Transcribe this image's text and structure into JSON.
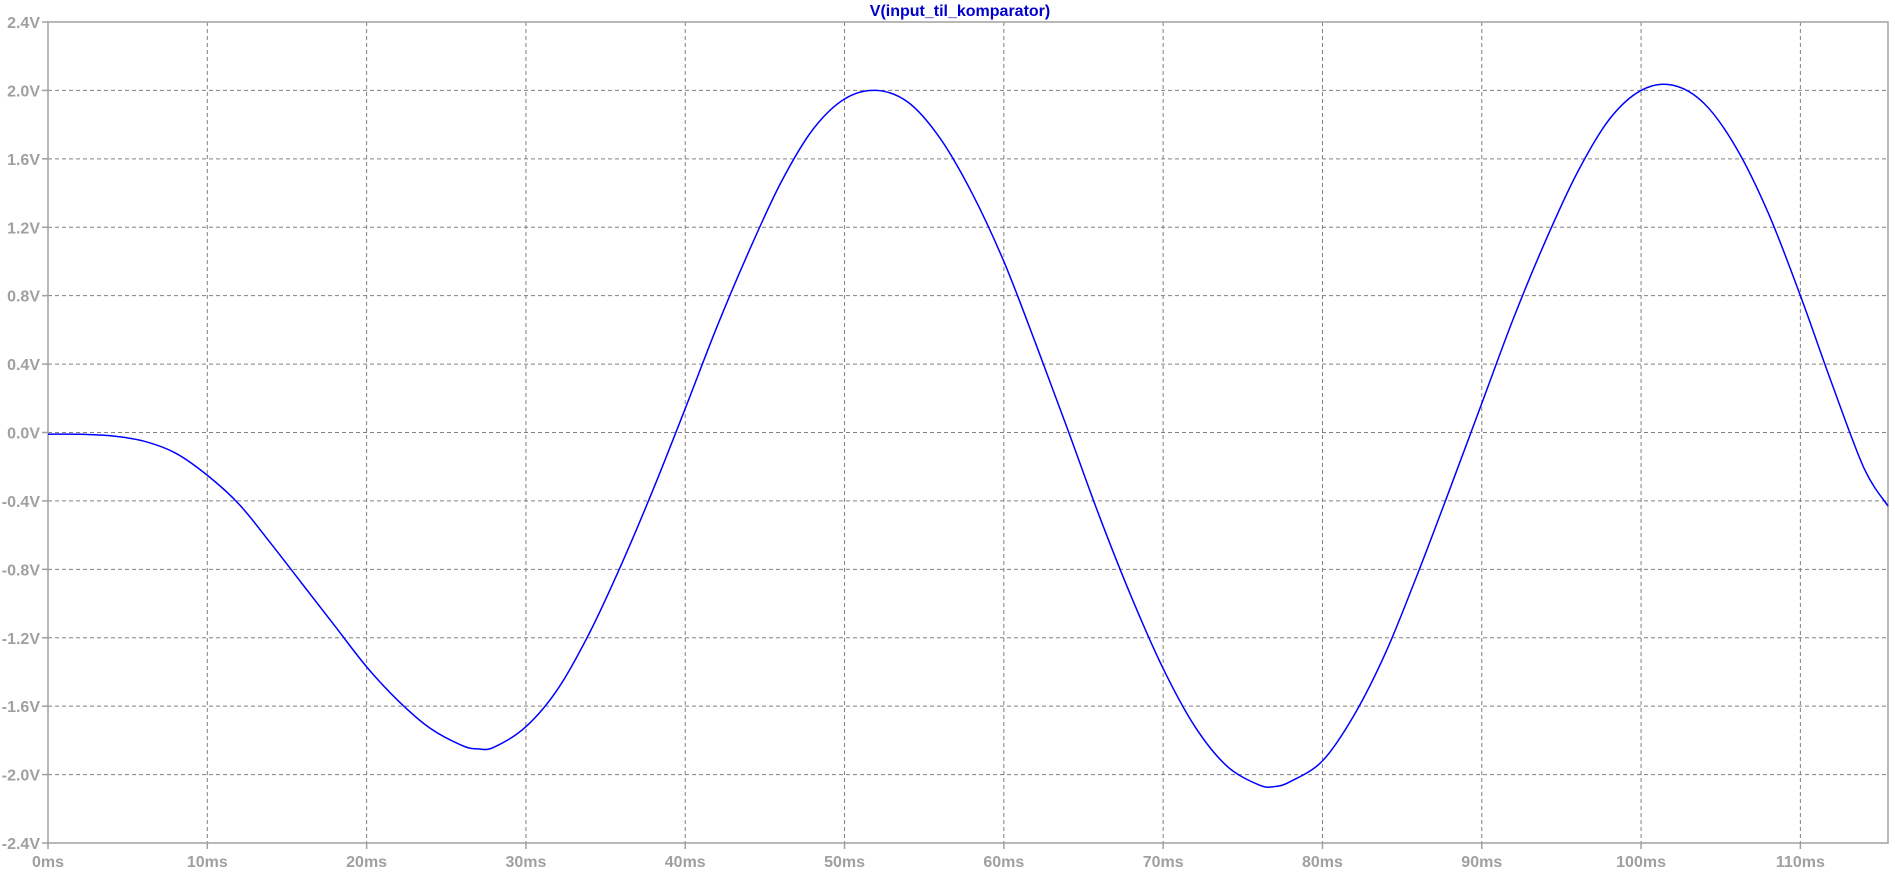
{
  "chart_data": {
    "type": "line",
    "title": "V(input_til_komparator)",
    "xlabel": "",
    "ylabel": "",
    "x_unit": "ms",
    "y_unit": "V",
    "xlim": [
      0,
      115.5
    ],
    "ylim": [
      -2.4,
      2.4
    ],
    "x_ticks": [
      0,
      10,
      20,
      30,
      40,
      50,
      60,
      70,
      80,
      90,
      100,
      110
    ],
    "x_tick_labels": [
      "0ms",
      "10ms",
      "20ms",
      "30ms",
      "40ms",
      "50ms",
      "60ms",
      "70ms",
      "80ms",
      "90ms",
      "100ms",
      "110ms"
    ],
    "y_ticks": [
      2.4,
      2.0,
      1.6,
      1.2,
      0.8,
      0.4,
      0.0,
      -0.4,
      -0.8,
      -1.2,
      -1.6,
      -2.0,
      -2.4
    ],
    "y_tick_labels": [
      "2.4V",
      "2.0V",
      "1.6V",
      "1.2V",
      "0.8V",
      "0.4V",
      "0.0V",
      "-0.4V",
      "-0.8V",
      "-1.2V",
      "-1.6V",
      "-2.0V",
      "-2.4V"
    ],
    "grid": true,
    "line_color": "#0000ff",
    "title_color": "#0000cc",
    "axis_text_color": "#a0a0a0",
    "series": [
      {
        "name": "V(input_til_komparator)",
        "x": [
          0,
          2,
          4,
          6,
          8,
          10,
          12,
          14,
          16,
          18,
          20,
          22,
          24,
          26,
          27,
          28,
          30,
          32,
          34,
          36,
          38,
          40,
          42,
          44,
          46,
          48,
          50,
          52,
          54,
          56,
          58,
          60,
          62,
          64,
          66,
          68,
          70,
          72,
          74,
          76,
          77,
          78,
          80,
          82,
          84,
          86,
          88,
          90,
          92,
          94,
          96,
          98,
          100,
          102,
          104,
          106,
          108,
          110,
          112,
          114,
          115.5
        ],
        "y": [
          -0.01,
          -0.01,
          -0.02,
          -0.05,
          -0.12,
          -0.25,
          -0.42,
          -0.65,
          -0.89,
          -1.13,
          -1.37,
          -1.57,
          -1.73,
          -1.83,
          -1.85,
          -1.84,
          -1.72,
          -1.5,
          -1.17,
          -0.77,
          -0.33,
          0.14,
          0.62,
          1.06,
          1.46,
          1.77,
          1.95,
          2.0,
          1.93,
          1.72,
          1.4,
          1.0,
          0.52,
          0.02,
          -0.49,
          -0.96,
          -1.38,
          -1.72,
          -1.95,
          -2.06,
          -2.07,
          -2.04,
          -1.92,
          -1.65,
          -1.28,
          -0.82,
          -0.33,
          0.17,
          0.67,
          1.12,
          1.52,
          1.83,
          2.0,
          2.03,
          1.92,
          1.66,
          1.28,
          0.8,
          0.28,
          -0.21,
          -0.43
        ]
      }
    ]
  }
}
